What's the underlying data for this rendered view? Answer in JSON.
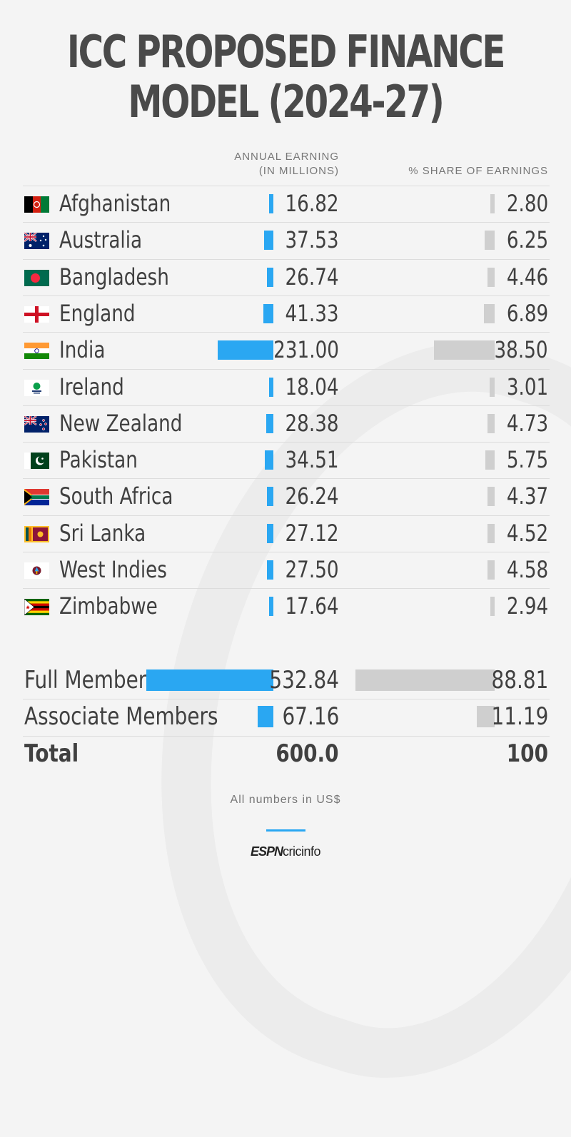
{
  "title_lines": [
    "ICC PROPOSED FINANCE",
    "MODEL (2024-27)"
  ],
  "columns": {
    "earning_line1": "ANNUAL EARNING",
    "earning_line2": "(IN MILLIONS)",
    "share": "% SHARE OF EARNINGS"
  },
  "colors": {
    "earning_bar": "#2aa7f2",
    "share_bar": "#cfcfcf"
  },
  "chart_data": {
    "type": "bar",
    "categories": [
      "Afghanistan",
      "Australia",
      "Bangladesh",
      "England",
      "India",
      "Ireland",
      "New Zealand",
      "Pakistan",
      "South Africa",
      "Sri Lanka",
      "West Indies",
      "Zimbabwe"
    ],
    "series": [
      {
        "name": "ANNUAL EARNING (IN MILLIONS)",
        "values": [
          16.82,
          37.53,
          26.74,
          41.33,
          231.0,
          18.04,
          28.38,
          34.51,
          26.24,
          27.12,
          27.5,
          17.64
        ]
      },
      {
        "name": "% SHARE OF EARNINGS",
        "values": [
          2.8,
          6.25,
          4.46,
          6.89,
          38.5,
          3.01,
          4.73,
          5.75,
          4.37,
          4.52,
          4.58,
          2.94
        ]
      }
    ],
    "earning_labels": [
      "16.82",
      "37.53",
      "26.74",
      "41.33",
      "231.00",
      "18.04",
      "28.38",
      "34.51",
      "26.24",
      "27.12",
      "27.50",
      "17.64"
    ],
    "share_labels": [
      "2.80",
      "6.25",
      "4.46",
      "6.89",
      "38.50",
      "3.01",
      "4.73",
      "5.75",
      "4.37",
      "4.52",
      "4.58",
      "2.94"
    ],
    "flags": [
      "afghanistan-flag",
      "australia-flag",
      "bangladesh-flag",
      "england-flag",
      "india-flag",
      "ireland-flag",
      "new-zealand-flag",
      "pakistan-flag",
      "south-africa-flag",
      "sri-lanka-flag",
      "west-indies-flag",
      "zimbabwe-flag"
    ],
    "summary": [
      {
        "label": "Full Members",
        "earning": 532.84,
        "earning_label": "532.84",
        "share": 88.81,
        "share_label": "88.81"
      },
      {
        "label": "Associate Members",
        "earning": 67.16,
        "earning_label": "67.16",
        "share": 11.19,
        "share_label": "11.19"
      },
      {
        "label": "Total",
        "earning": 600.0,
        "earning_label": "600.0",
        "share": 100,
        "share_label": "100"
      }
    ]
  },
  "footer": {
    "note": "All numbers in US$",
    "logo_espn": "ESPN",
    "logo_cricinfo": "cricinfo"
  }
}
